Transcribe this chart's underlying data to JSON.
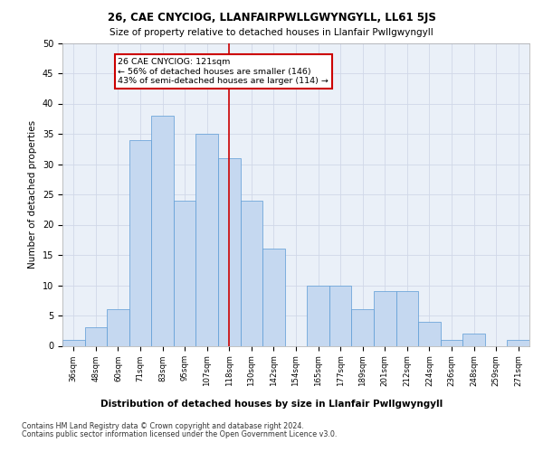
{
  "title1": "26, CAE CNYCIOG, LLANFAIRPWLLGWYNGYLL, LL61 5JS",
  "title2": "Size of property relative to detached houses in Llanfair Pwllgwyngyll",
  "xlabel": "Distribution of detached houses by size in Llanfair Pwllgwyngyll",
  "ylabel": "Number of detached properties",
  "categories": [
    "36sqm",
    "48sqm",
    "60sqm",
    "71sqm",
    "83sqm",
    "95sqm",
    "107sqm",
    "118sqm",
    "130sqm",
    "142sqm",
    "154sqm",
    "165sqm",
    "177sqm",
    "189sqm",
    "201sqm",
    "212sqm",
    "224sqm",
    "236sqm",
    "248sqm",
    "259sqm",
    "271sqm"
  ],
  "values": [
    1,
    3,
    6,
    34,
    38,
    24,
    35,
    31,
    24,
    16,
    0,
    10,
    10,
    6,
    9,
    9,
    4,
    1,
    2,
    0,
    1
  ],
  "bar_color": "#c5d8f0",
  "bar_edge_color": "#5b9bd5",
  "annotation_text": "26 CAE CNYCIOG: 121sqm\n← 56% of detached houses are smaller (146)\n43% of semi-detached houses are larger (114) →",
  "annotation_box_color": "#ffffff",
  "annotation_box_edge": "#cc0000",
  "footer1": "Contains HM Land Registry data © Crown copyright and database right 2024.",
  "footer2": "Contains public sector information licensed under the Open Government Licence v3.0.",
  "ylim": [
    0,
    50
  ],
  "yticks": [
    0,
    5,
    10,
    15,
    20,
    25,
    30,
    35,
    40,
    45,
    50
  ],
  "grid_color": "#d0d8e8",
  "bg_color": "#eaf0f8",
  "bar_width": 1.0,
  "redline_idx": 7
}
